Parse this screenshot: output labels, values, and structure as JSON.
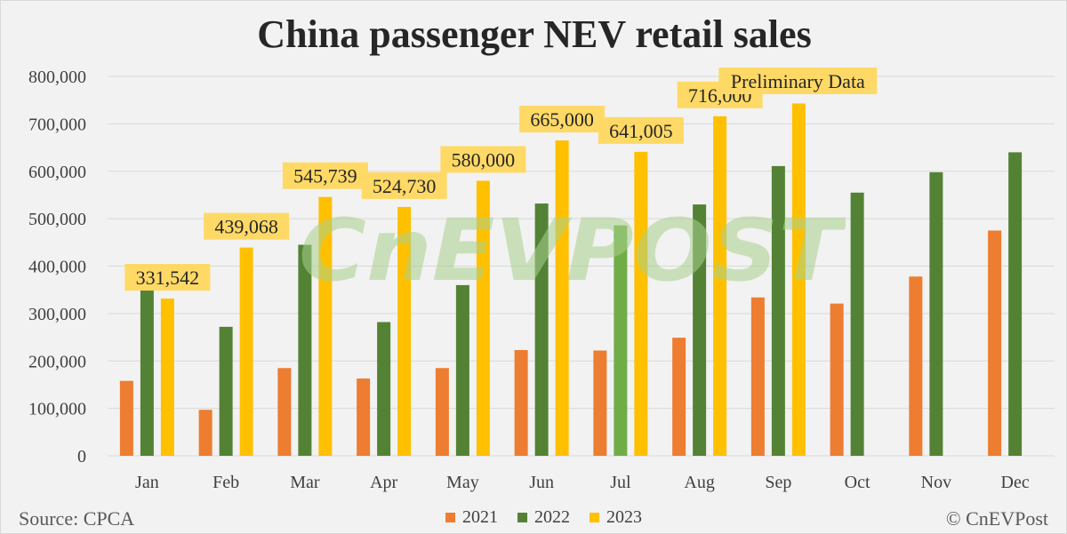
{
  "title": "China passenger NEV retail sales",
  "source": "Source: CPCA",
  "copyright": "© CnEVPost",
  "watermark": "CnEVPOST",
  "colors": {
    "series_2021": "#ed7d31",
    "series_2022": "#548235",
    "series_2023": "#ffc000",
    "label_bg": "#ffd966",
    "grid": "#d9d9d9",
    "highlight_2022_jul": "#70ad47",
    "watermark": "#a9d18e"
  },
  "chart_data": {
    "type": "bar",
    "title": "China passenger NEV retail sales",
    "categories": [
      "Jan",
      "Feb",
      "Mar",
      "Apr",
      "May",
      "Jun",
      "Jul",
      "Aug",
      "Sep",
      "Oct",
      "Nov",
      "Dec"
    ],
    "yticks": [
      "0",
      "100,000",
      "200,000",
      "300,000",
      "400,000",
      "500,000",
      "600,000",
      "700,000",
      "800,000"
    ],
    "ylim": [
      0,
      800000
    ],
    "grid": true,
    "legend_position": "bottom",
    "series": [
      {
        "name": "2021",
        "values": [
          158000,
          97000,
          185000,
          163000,
          185000,
          223000,
          222000,
          249000,
          334000,
          321000,
          378000,
          475000
        ]
      },
      {
        "name": "2022",
        "values": [
          350000,
          272000,
          445000,
          282000,
          360000,
          532000,
          486000,
          530000,
          611000,
          555000,
          598000,
          640000
        ]
      },
      {
        "name": "2023",
        "values": [
          331542,
          439068,
          545739,
          524730,
          580000,
          665000,
          641005,
          716000,
          743000,
          null,
          null,
          null
        ]
      }
    ],
    "data_labels_2023": [
      "331,542",
      "439,068",
      "545,739",
      "524,730",
      "580,000",
      "665,000",
      "641,005",
      "716,000",
      null,
      null,
      null,
      null
    ],
    "annotation": "Preliminary Data"
  }
}
